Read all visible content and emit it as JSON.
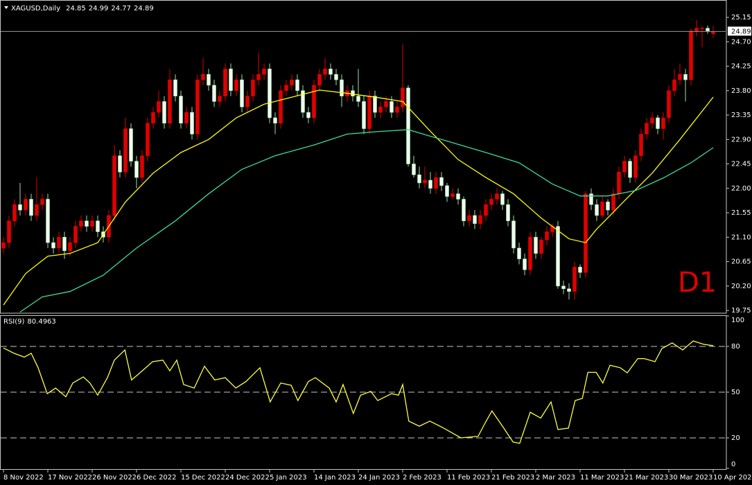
{
  "chart_data": [
    {
      "type": "candlestick",
      "header": "XAGUSD,Daily",
      "annotation": "D1",
      "up_color": "#e00000",
      "down_color": "#f0fff0",
      "categories": [
        "8 Nov 2022",
        null,
        null,
        null,
        null,
        null,
        null,
        null,
        "17 Nov 2022",
        null,
        null,
        null,
        null,
        null,
        null,
        null,
        "26 Nov 2022",
        null,
        null,
        null,
        null,
        null,
        null,
        null,
        "6 Dec 2022",
        null,
        null,
        null,
        null,
        null,
        null,
        null,
        "15 Dec 2022",
        null,
        null,
        null,
        null,
        null,
        null,
        null,
        "24 Dec 2022",
        null,
        null,
        null,
        null,
        null,
        null,
        null,
        "5 Jan 2023",
        null,
        null,
        null,
        null,
        null,
        null,
        null,
        "14 Jan 2023",
        null,
        null,
        null,
        null,
        null,
        null,
        null,
        "24 Jan 2023",
        null,
        null,
        null,
        null,
        null,
        null,
        null,
        "2 Feb 2023",
        null,
        null,
        null,
        null,
        null,
        null,
        null,
        "11 Feb 2023",
        null,
        null,
        null,
        null,
        null,
        null,
        null,
        "21 Feb 2023",
        null,
        null,
        null,
        null,
        null,
        null,
        null,
        "2 Mar 2023",
        null,
        null,
        null,
        null,
        null,
        null,
        null,
        "11 Mar 2023",
        null,
        null,
        null,
        null,
        null,
        null,
        null,
        "21 Mar 2023",
        null,
        null,
        null,
        null,
        null,
        null,
        null,
        "30 Mar 2023",
        null,
        null,
        null,
        null,
        null,
        null,
        null,
        "10 Apr 2023"
      ],
      "ohlc": [
        [
          20.9,
          21.1,
          20.8,
          21.0
        ],
        [
          21.0,
          21.5,
          20.9,
          21.4
        ],
        [
          21.4,
          21.8,
          21.3,
          21.7
        ],
        [
          21.7,
          22.1,
          21.5,
          21.6
        ],
        [
          21.6,
          21.9,
          21.5,
          21.8
        ],
        [
          21.8,
          21.9,
          21.4,
          21.5
        ],
        [
          21.5,
          22.2,
          21.4,
          21.7
        ],
        [
          21.7,
          21.9,
          21.6,
          21.8
        ],
        [
          21.8,
          21.9,
          20.9,
          21.0
        ],
        [
          21.0,
          21.1,
          20.8,
          20.9
        ],
        [
          20.9,
          21.2,
          20.8,
          21.1
        ],
        [
          21.1,
          21.2,
          20.7,
          20.85
        ],
        [
          20.85,
          21.1,
          20.75,
          21.0
        ],
        [
          21.0,
          21.4,
          20.9,
          21.3
        ],
        [
          21.3,
          21.5,
          21.2,
          21.4
        ],
        [
          21.4,
          21.5,
          21.2,
          21.3
        ],
        [
          21.3,
          21.5,
          21.2,
          21.4
        ],
        [
          21.4,
          21.5,
          21.1,
          21.2
        ],
        [
          21.2,
          21.3,
          21.0,
          21.1
        ],
        [
          21.1,
          21.6,
          21.0,
          21.5
        ],
        [
          21.5,
          22.8,
          21.4,
          22.6
        ],
        [
          22.6,
          22.7,
          22.2,
          22.3
        ],
        [
          22.3,
          23.3,
          22.2,
          23.1
        ],
        [
          23.1,
          23.2,
          22.4,
          22.5
        ],
        [
          22.5,
          22.6,
          22.0,
          22.2
        ],
        [
          22.2,
          22.7,
          22.1,
          22.6
        ],
        [
          22.6,
          23.3,
          22.5,
          23.2
        ],
        [
          23.2,
          23.5,
          23.1,
          23.4
        ],
        [
          23.4,
          23.8,
          23.3,
          23.6
        ],
        [
          23.6,
          23.7,
          23.1,
          23.2
        ],
        [
          23.2,
          24.2,
          23.1,
          24.0
        ],
        [
          24.0,
          24.1,
          23.6,
          23.7
        ],
        [
          23.7,
          23.8,
          23.1,
          23.2
        ],
        [
          23.2,
          23.5,
          23.1,
          23.4
        ],
        [
          23.4,
          23.5,
          22.9,
          23.0
        ],
        [
          23.0,
          24.1,
          22.9,
          24.0
        ],
        [
          24.0,
          24.4,
          23.9,
          24.1
        ],
        [
          24.1,
          24.2,
          23.8,
          23.9
        ],
        [
          23.9,
          24.0,
          23.5,
          23.6
        ],
        [
          23.6,
          23.8,
          23.5,
          23.7
        ],
        [
          23.7,
          24.3,
          23.6,
          24.2
        ],
        [
          24.2,
          24.3,
          23.7,
          23.8
        ],
        [
          23.8,
          24.1,
          23.7,
          24.0
        ],
        [
          24.0,
          24.1,
          23.4,
          23.5
        ],
        [
          23.5,
          23.8,
          23.4,
          23.7
        ],
        [
          23.7,
          24.1,
          23.6,
          24.0
        ],
        [
          24.0,
          24.5,
          23.9,
          24.1
        ],
        [
          24.1,
          24.3,
          24.0,
          24.2
        ],
        [
          24.2,
          24.3,
          23.2,
          23.3
        ],
        [
          23.3,
          23.4,
          23.0,
          23.2
        ],
        [
          23.2,
          23.9,
          23.1,
          23.8
        ],
        [
          23.8,
          24.0,
          23.7,
          23.9
        ],
        [
          23.9,
          24.1,
          23.8,
          24.0
        ],
        [
          24.0,
          24.1,
          23.7,
          23.8
        ],
        [
          23.8,
          23.9,
          23.3,
          23.4
        ],
        [
          23.4,
          23.5,
          23.2,
          23.3
        ],
        [
          23.3,
          24.0,
          23.2,
          23.9
        ],
        [
          23.9,
          24.2,
          23.8,
          24.1
        ],
        [
          24.1,
          24.4,
          24.0,
          24.2
        ],
        [
          24.2,
          24.3,
          24.0,
          24.1
        ],
        [
          24.1,
          24.2,
          23.9,
          24.0
        ],
        [
          24.0,
          24.1,
          23.5,
          23.7
        ],
        [
          23.7,
          23.9,
          23.6,
          23.8
        ],
        [
          23.8,
          23.9,
          23.6,
          23.7
        ],
        [
          23.7,
          24.2,
          23.5,
          23.6
        ],
        [
          23.6,
          23.7,
          23.0,
          23.1
        ],
        [
          23.1,
          23.8,
          23.0,
          23.7
        ],
        [
          23.7,
          23.8,
          23.3,
          23.4
        ],
        [
          23.4,
          23.6,
          23.3,
          23.5
        ],
        [
          23.5,
          23.7,
          23.4,
          23.6
        ],
        [
          23.6,
          23.7,
          23.3,
          23.4
        ],
        [
          23.4,
          23.6,
          23.3,
          23.5
        ],
        [
          23.5,
          24.65,
          23.4,
          23.85
        ],
        [
          23.85,
          23.9,
          22.4,
          22.45
        ],
        [
          22.45,
          22.6,
          22.2,
          22.25
        ],
        [
          22.25,
          22.4,
          22.0,
          22.1
        ],
        [
          22.1,
          22.4,
          22.0,
          22.15
        ],
        [
          22.15,
          22.3,
          21.9,
          22.0
        ],
        [
          22.0,
          22.3,
          21.9,
          22.2
        ],
        [
          22.2,
          22.3,
          21.95,
          22.05
        ],
        [
          22.05,
          22.1,
          21.75,
          21.85
        ],
        [
          21.85,
          22.0,
          21.8,
          21.9
        ],
        [
          21.9,
          22.0,
          21.7,
          21.8
        ],
        [
          21.8,
          21.85,
          21.3,
          21.4
        ],
        [
          21.4,
          21.6,
          21.3,
          21.5
        ],
        [
          21.5,
          21.6,
          21.25,
          21.35
        ],
        [
          21.35,
          21.6,
          21.25,
          21.5
        ],
        [
          21.5,
          21.8,
          21.4,
          21.7
        ],
        [
          21.7,
          21.9,
          21.6,
          21.8
        ],
        [
          21.8,
          22.0,
          21.7,
          21.9
        ],
        [
          21.9,
          21.95,
          21.6,
          21.7
        ],
        [
          21.7,
          21.8,
          21.3,
          21.4
        ],
        [
          21.4,
          21.5,
          20.8,
          20.9
        ],
        [
          20.9,
          21.0,
          20.6,
          20.7
        ],
        [
          20.7,
          20.8,
          20.4,
          20.5
        ],
        [
          20.5,
          21.2,
          20.4,
          21.1
        ],
        [
          21.1,
          21.2,
          20.7,
          20.8
        ],
        [
          20.8,
          21.1,
          20.7,
          21.05
        ],
        [
          21.05,
          21.3,
          20.95,
          21.2
        ],
        [
          21.2,
          21.35,
          21.1,
          21.3
        ],
        [
          21.3,
          21.4,
          20.15,
          20.2
        ],
        [
          20.2,
          20.3,
          20.05,
          20.15
        ],
        [
          20.15,
          20.25,
          19.95,
          20.1
        ],
        [
          20.1,
          20.65,
          19.95,
          20.55
        ],
        [
          20.55,
          20.6,
          20.35,
          20.45
        ],
        [
          20.45,
          21.95,
          20.35,
          21.9
        ],
        [
          21.9,
          22.0,
          21.6,
          21.7
        ],
        [
          21.7,
          21.8,
          21.4,
          21.5
        ],
        [
          21.5,
          21.85,
          21.45,
          21.75
        ],
        [
          21.75,
          21.8,
          21.5,
          21.6
        ],
        [
          21.6,
          22.0,
          21.5,
          21.9
        ],
        [
          21.9,
          22.4,
          21.8,
          22.3
        ],
        [
          22.3,
          22.6,
          22.2,
          22.5
        ],
        [
          22.5,
          22.55,
          22.1,
          22.2
        ],
        [
          22.2,
          22.7,
          22.1,
          22.6
        ],
        [
          22.6,
          23.1,
          22.5,
          23.0
        ],
        [
          23.0,
          23.3,
          22.9,
          23.2
        ],
        [
          23.2,
          23.4,
          23.1,
          23.3
        ],
        [
          23.3,
          23.35,
          23.0,
          23.1
        ],
        [
          23.1,
          23.4,
          22.9,
          23.3
        ],
        [
          23.3,
          23.9,
          23.2,
          23.8
        ],
        [
          23.8,
          24.2,
          23.7,
          24.0
        ],
        [
          24.0,
          24.3,
          23.9,
          24.1
        ],
        [
          24.1,
          24.2,
          23.6,
          24.0
        ],
        [
          24.0,
          24.95,
          23.9,
          24.9
        ],
        [
          24.9,
          25.1,
          24.8,
          24.95
        ],
        [
          24.95,
          25.0,
          24.6,
          24.95
        ],
        [
          24.95,
          25.0,
          24.85,
          24.9
        ],
        [
          24.85,
          24.99,
          24.77,
          24.89
        ]
      ],
      "series": [
        {
          "color": "#ffff00",
          "x": [
            0,
            4,
            8,
            12,
            17,
            22,
            27,
            32,
            37,
            42,
            47,
            52,
            57,
            62,
            67,
            72,
            77,
            82,
            87,
            92,
            97,
            102,
            105,
            107,
            112,
            117,
            122,
            128
          ],
          "values": [
            19.85,
            20.43,
            20.75,
            20.8,
            21.0,
            21.75,
            22.28,
            22.66,
            22.9,
            23.3,
            23.55,
            23.68,
            23.81,
            23.75,
            23.68,
            23.6,
            23.05,
            22.53,
            22.2,
            21.9,
            21.45,
            21.07,
            21.0,
            21.25,
            21.77,
            22.28,
            22.9,
            23.68
          ]
        },
        {
          "color": "#3cdc9a",
          "x": [
            3,
            7,
            12,
            18,
            24,
            31,
            37,
            43,
            49,
            56,
            62,
            68,
            73,
            79,
            87,
            93,
            99,
            104,
            109,
            114,
            119,
            124,
            128
          ],
          "values": [
            19.72,
            20.0,
            20.1,
            20.4,
            20.9,
            21.4,
            21.9,
            22.35,
            22.6,
            22.8,
            23.0,
            23.05,
            23.08,
            22.9,
            22.66,
            22.47,
            22.08,
            21.86,
            21.86,
            21.96,
            22.19,
            22.47,
            22.75
          ]
        }
      ],
      "ylim": [
        19.7,
        25.47
      ],
      "yticks": [
        25.15,
        {
          "value": 24.7,
          "label": "24.70"
        },
        24.25,
        {
          "value": 23.8,
          "label": "23.80"
        },
        23.35,
        {
          "value": 22.9,
          "label": "22.90"
        },
        22.45,
        {
          "value": 22.0,
          "label": "22.00"
        },
        21.55,
        {
          "value": 21.1,
          "label": "21.10"
        },
        20.65,
        {
          "value": 20.2,
          "label": "20.20"
        },
        19.75
      ]
    },
    {
      "type": "line",
      "title": "RSI(9)",
      "series": [
        {
          "color": "#ffff40",
          "x": [
            0,
            1.9,
            3.75,
            5,
            6.25,
            7.9,
            9.4,
            11.25,
            12.5,
            14.4,
            15.6,
            17,
            18.75,
            20,
            21.9,
            23.1,
            24.4,
            26.9,
            28.75,
            30,
            31.25,
            32.5,
            34.4,
            36.25,
            38.1,
            40,
            41.9,
            43.75,
            46.25,
            48.1,
            50,
            51.9,
            53.1,
            55,
            56.25,
            58.75,
            60,
            61.25,
            63.1,
            64.4,
            66.25,
            67.5,
            70,
            71.25,
            72,
            73.1,
            75,
            76.9,
            79.4,
            82.5,
            85.6,
            86.9,
            88.1,
            90,
            91.9,
            93.1,
            95,
            96.9,
            98.75,
            100,
            101.9,
            103.1,
            104.4,
            105.4,
            106.9,
            108.1,
            109.4,
            111.25,
            112.5,
            114.4,
            115.6,
            117.5,
            118.75,
            120.6,
            122.5,
            124.4,
            126.25,
            128
          ],
          "values": [
            79,
            75.5,
            73,
            75.5,
            66,
            49,
            52.7,
            47,
            56,
            60,
            56,
            48,
            59.5,
            71,
            77.7,
            58,
            62,
            70,
            71,
            64,
            71,
            55,
            52.7,
            67,
            58,
            59.5,
            52.7,
            57,
            66,
            43.6,
            56,
            54.5,
            44.5,
            57,
            59.5,
            52.7,
            43.6,
            55,
            36,
            48,
            50.5,
            44.5,
            49,
            48,
            55,
            31,
            27.7,
            31,
            26.4,
            20,
            21,
            30,
            37.7,
            27.7,
            17.3,
            16.4,
            36.8,
            33,
            43.6,
            25.5,
            26.4,
            44.5,
            45.9,
            63,
            63,
            56,
            67.7,
            66,
            62.7,
            72,
            72,
            70,
            78.6,
            82.3,
            77.7,
            83.6,
            81.4,
            80.4963
          ]
        }
      ],
      "ylim": [
        0,
        100
      ],
      "yticks": [
        0,
        20,
        50,
        80,
        100
      ]
    }
  ]
}
